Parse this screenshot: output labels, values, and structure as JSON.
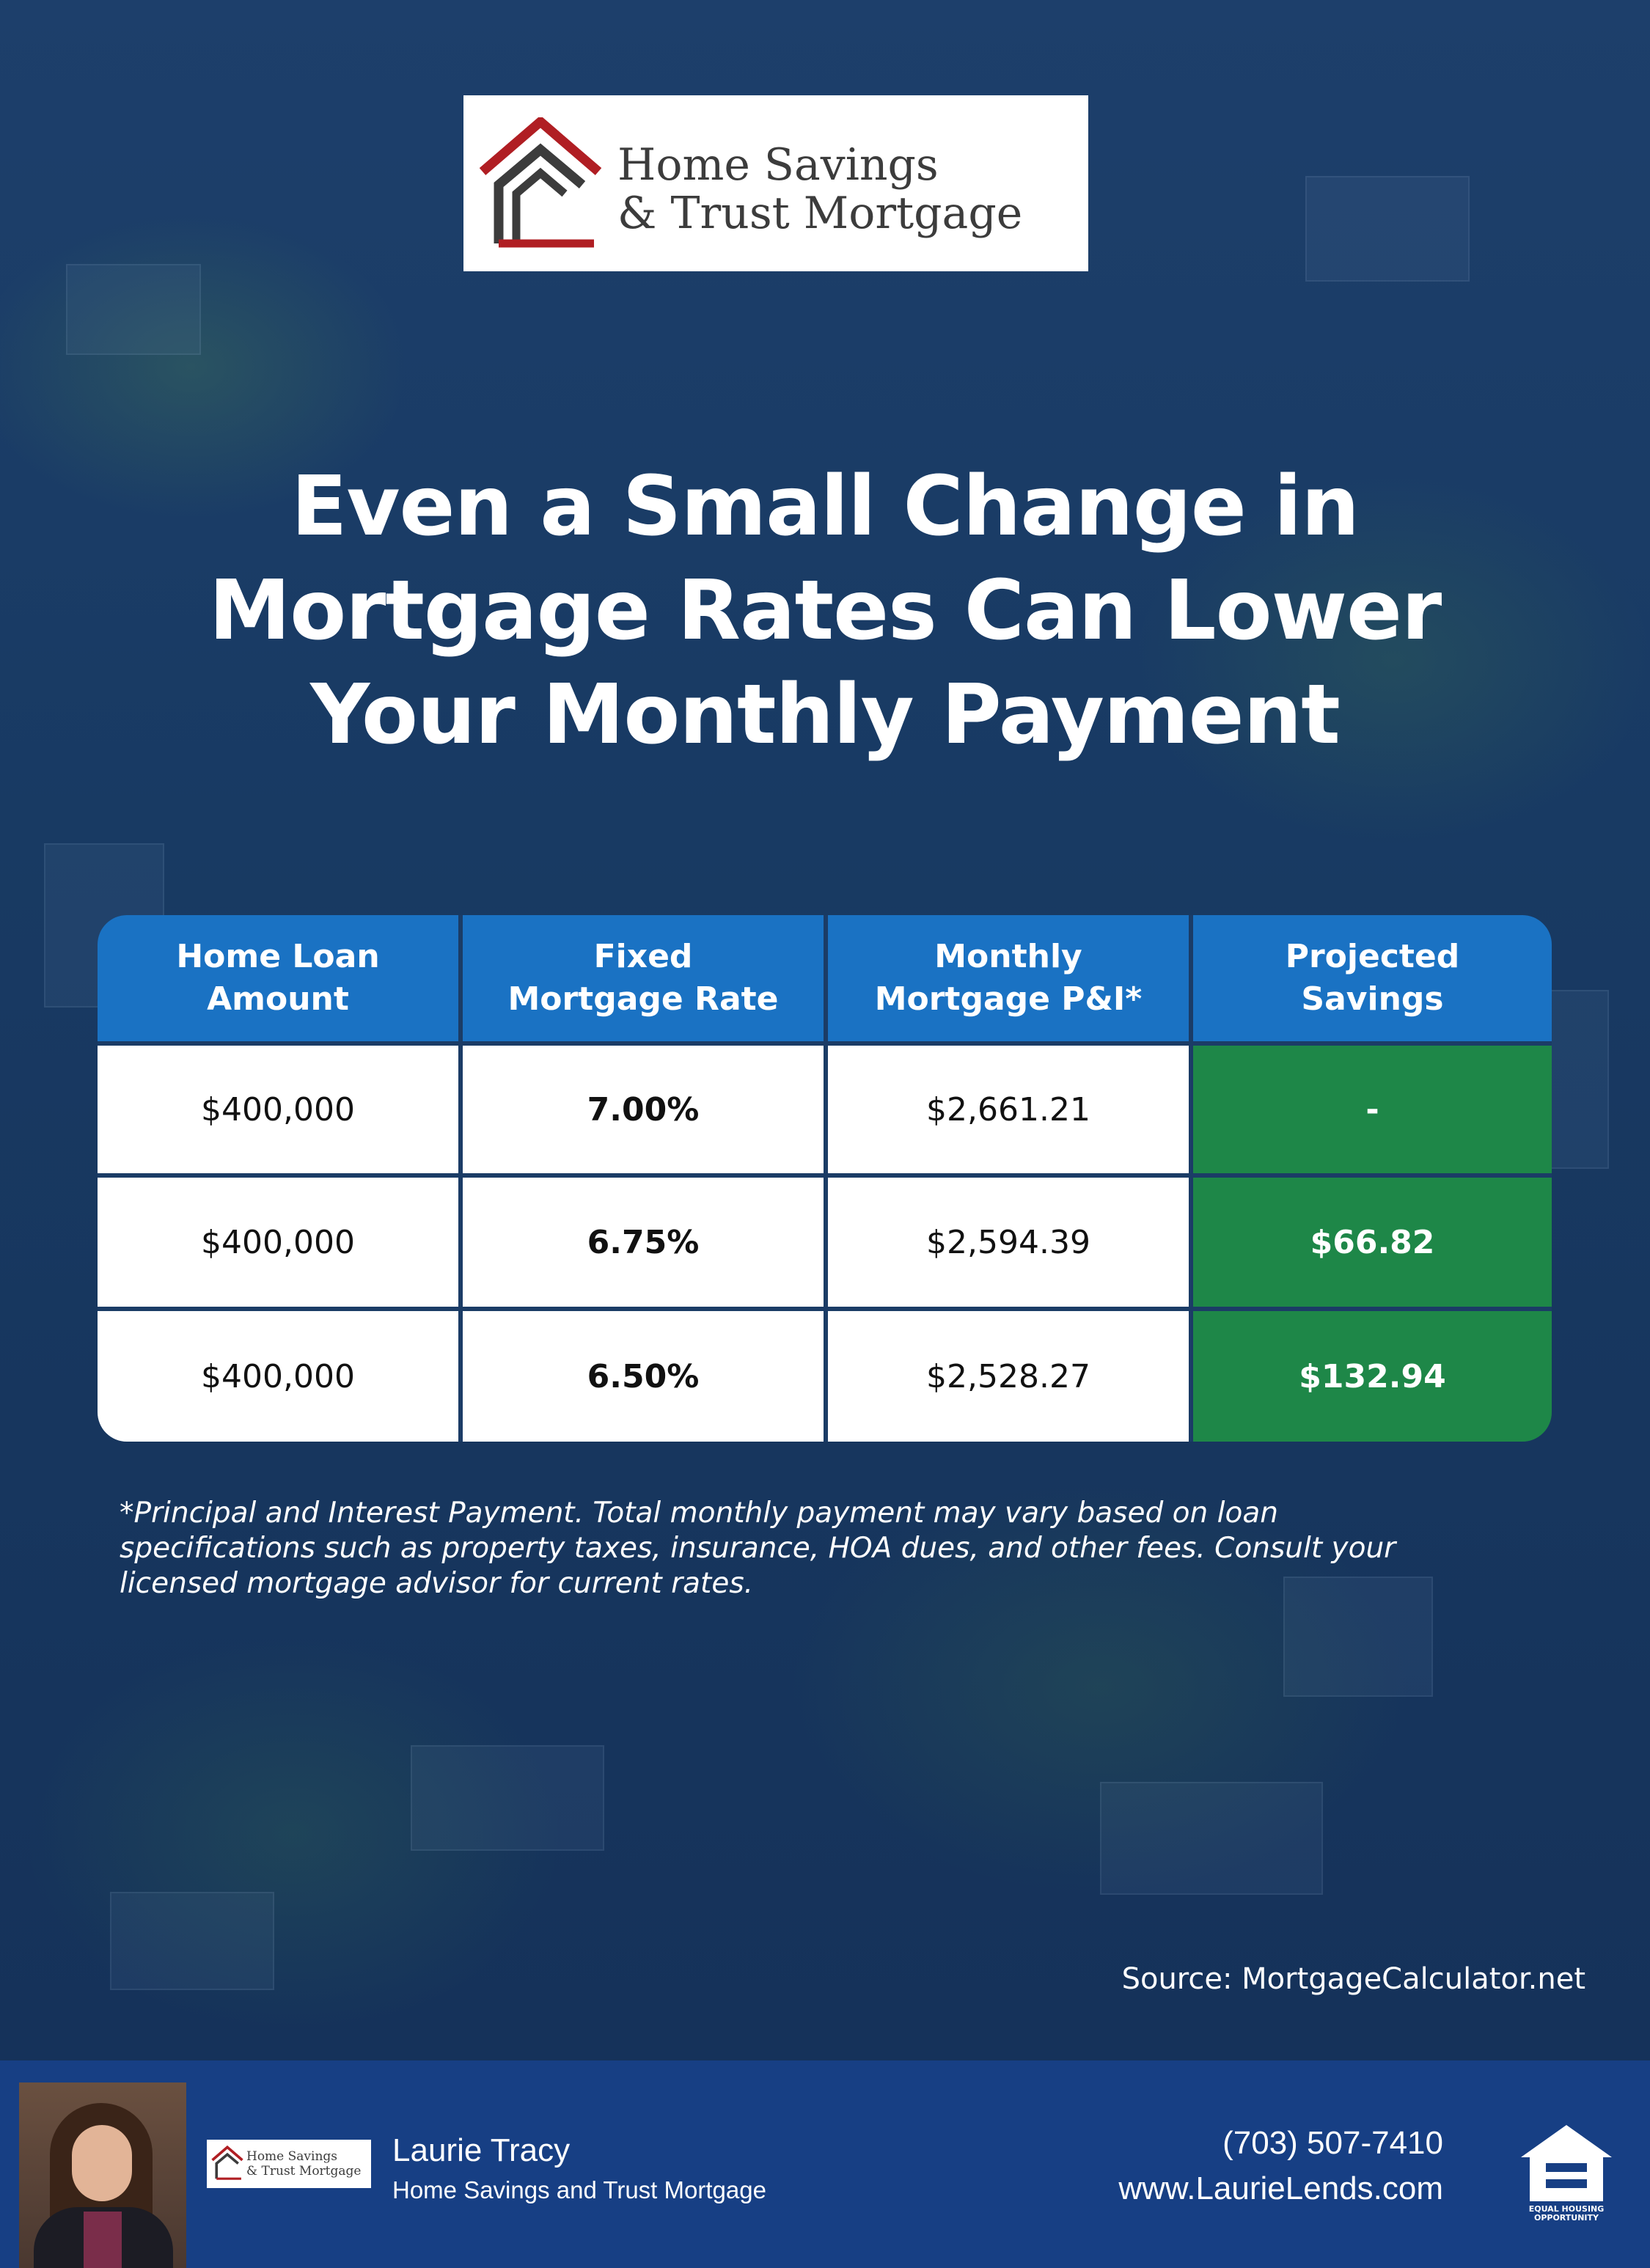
{
  "brand": {
    "logo_line1": "Home Savings",
    "logo_line2": "& Trust Mortgage",
    "colors": {
      "logo_red": "#b01e23",
      "logo_gray": "#3c3c3c",
      "header_blue": "#1a72c3",
      "savings_green": "#1e8748",
      "footer_blue": "#173f84"
    }
  },
  "headline": {
    "line1": "Even a Small Change in",
    "line2": "Mortgage Rates Can Lower",
    "line3": "Your Monthly Payment"
  },
  "table": {
    "headers": [
      {
        "line1": "Home Loan",
        "line2": "Amount"
      },
      {
        "line1": "Fixed",
        "line2": "Mortgage Rate"
      },
      {
        "line1": "Monthly",
        "line2": "Mortgage P&I*"
      },
      {
        "line1": "Projected",
        "line2": "Savings"
      }
    ],
    "rows": [
      {
        "amount": "$400,000",
        "rate": "7.00%",
        "payment": "$2,661.21",
        "savings": "-"
      },
      {
        "amount": "$400,000",
        "rate": "6.75%",
        "payment": "$2,594.39",
        "savings": "$66.82"
      },
      {
        "amount": "$400,000",
        "rate": "6.50%",
        "payment": "$2,528.27",
        "savings": "$132.94"
      }
    ]
  },
  "footnote": {
    "line1": "*Principal and Interest Payment. Total monthly payment may vary based on loan",
    "line2": "specifications such as property taxes, insurance, HOA dues, and other fees. Consult your",
    "line3": "licensed mortgage advisor for current rates."
  },
  "source": "Source: MortgageCalculator.net",
  "footer": {
    "agent_name": "Laurie Tracy",
    "agent_company": "Home Savings and Trust Mortgage",
    "phone": "(703) 507-7410",
    "website": "www.LaurieLends.com",
    "mini_logo_line1": "Home Savings",
    "mini_logo_line2": "& Trust Mortgage",
    "eho_line1": "EQUAL HOUSING",
    "eho_line2": "OPPORTUNITY",
    "icons": [
      "agent-photo",
      "equal-housing-icon"
    ]
  }
}
